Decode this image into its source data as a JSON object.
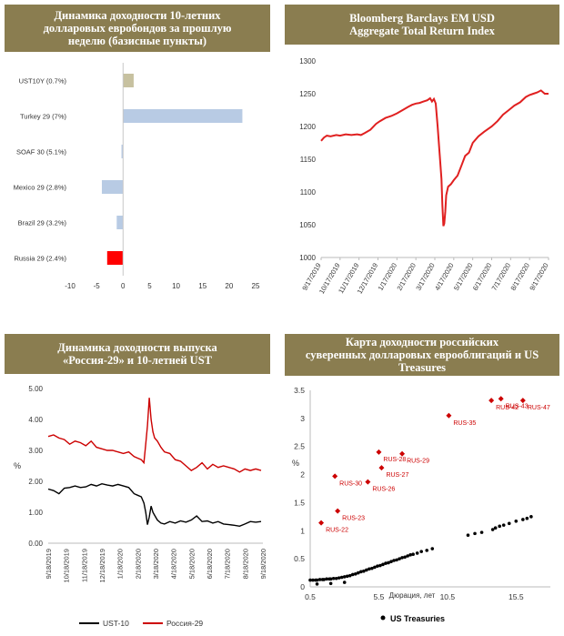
{
  "panels": {
    "p1": {
      "title_lines": [
        "Динамика доходности 10-летних",
        "долларовых евробондов за прошлую",
        "неделю (базисные пункты)"
      ]
    },
    "p2": {
      "title_lines": [
        "Bloomberg Barclays EM USD",
        "Aggregate Total Return Index"
      ]
    },
    "p3": {
      "title_lines": [
        "Динамика доходности выпуска",
        "«Россия-29» и 10-летней UST"
      ]
    },
    "p4": {
      "title_lines": [
        "Карта доходности российских",
        "суверенных долларовых еврооблигаций и US",
        "Treasures"
      ]
    }
  },
  "chart_data": [
    {
      "type": "bar",
      "orientation": "horizontal",
      "categories": [
        "UST10Y (0.7%)",
        "Turkey 29 (7%)",
        "SOAF 30 (5.1%)",
        "Mexico 29 (2.8%)",
        "Brazil 29 (3.2%)",
        "Russia 29 (2.4%)"
      ],
      "values": [
        2,
        22.5,
        -0.3,
        -4,
        -1.2,
        -3
      ],
      "colors": [
        "#c7c1a0",
        "#b8cbe4",
        "#b8cbe4",
        "#b8cbe4",
        "#b8cbe4",
        "#ff0000"
      ],
      "xlim": [
        -10,
        25
      ],
      "xticks": [
        -10,
        -5,
        0,
        5,
        10,
        15,
        20,
        25
      ]
    },
    {
      "type": "line",
      "color": "#e02020",
      "ylim": [
        1000,
        1300
      ],
      "yticks": [
        1000,
        1050,
        1100,
        1150,
        1200,
        1250,
        1300
      ],
      "xtick_labels": [
        "9/17/2019",
        "10/17/2019",
        "11/17/2019",
        "12/17/2019",
        "1/17/2020",
        "2/17/2020",
        "3/17/2020",
        "4/17/2020",
        "5/17/2020",
        "6/17/2020",
        "7/17/2020",
        "8/17/2020",
        "9/17/2020"
      ],
      "x_range": [
        0,
        12
      ],
      "series": [
        {
          "x": [
            0,
            0.15,
            0.3,
            0.5,
            0.8,
            1.0,
            1.3,
            1.6,
            1.9,
            2.1,
            2.3,
            2.6,
            2.9,
            3.1,
            3.4,
            3.7,
            4.0,
            4.3,
            4.6,
            4.8,
            5.0,
            5.2,
            5.4,
            5.6,
            5.75,
            5.85,
            5.95,
            6.05,
            6.15,
            6.25,
            6.35,
            6.4,
            6.45,
            6.5,
            6.55,
            6.6,
            6.7,
            6.85,
            7.0,
            7.2,
            7.4,
            7.6,
            7.8,
            8.0,
            8.3,
            8.6,
            9.0,
            9.3,
            9.6,
            9.9,
            10.2,
            10.5,
            10.8,
            11.0,
            11.2,
            11.4,
            11.6,
            11.8,
            12.0
          ],
          "y": [
            1178,
            1183,
            1186,
            1185,
            1187,
            1186,
            1188,
            1187,
            1188,
            1187,
            1190,
            1195,
            1204,
            1208,
            1213,
            1216,
            1220,
            1225,
            1230,
            1233,
            1235,
            1236,
            1238,
            1240,
            1243,
            1238,
            1242,
            1235,
            1200,
            1160,
            1120,
            1080,
            1048,
            1052,
            1070,
            1095,
            1108,
            1112,
            1118,
            1125,
            1140,
            1155,
            1160,
            1175,
            1185,
            1192,
            1200,
            1208,
            1218,
            1225,
            1232,
            1237,
            1245,
            1248,
            1250,
            1252,
            1255,
            1250,
            1250
          ]
        }
      ]
    },
    {
      "type": "line",
      "ylim": [
        0,
        5
      ],
      "yticks": [
        "0.00",
        "1.00",
        "2.00",
        "3.00",
        "4.00",
        "5.00"
      ],
      "ylabel": "%",
      "xtick_labels": [
        "9/18/2019",
        "10/18/2019",
        "11/18/2019",
        "12/18/2019",
        "1/18/2020",
        "2/18/2020",
        "3/18/2020",
        "4/18/2020",
        "5/18/2020",
        "6/18/2020",
        "7/18/2020",
        "8/18/2020",
        "9/18/2020"
      ],
      "x_range": [
        0,
        12
      ],
      "legend": "bottom",
      "series": [
        {
          "name": "UST-10",
          "color": "#000000",
          "x": [
            0,
            0.3,
            0.6,
            0.9,
            1.2,
            1.5,
            1.8,
            2.1,
            2.4,
            2.7,
            3.0,
            3.3,
            3.6,
            3.9,
            4.2,
            4.5,
            4.8,
            5.0,
            5.2,
            5.35,
            5.45,
            5.55,
            5.65,
            5.75,
            5.85,
            5.95,
            6.1,
            6.3,
            6.5,
            6.8,
            7.1,
            7.4,
            7.7,
            8.0,
            8.3,
            8.6,
            8.9,
            9.2,
            9.5,
            9.8,
            10.1,
            10.4,
            10.7,
            11.0,
            11.3,
            11.6,
            11.9
          ],
          "y": [
            1.75,
            1.7,
            1.6,
            1.78,
            1.8,
            1.85,
            1.8,
            1.82,
            1.9,
            1.85,
            1.92,
            1.88,
            1.85,
            1.9,
            1.85,
            1.8,
            1.6,
            1.55,
            1.5,
            1.3,
            1.0,
            0.6,
            0.85,
            1.2,
            1.0,
            0.9,
            0.75,
            0.65,
            0.62,
            0.7,
            0.65,
            0.72,
            0.68,
            0.75,
            0.88,
            0.7,
            0.72,
            0.65,
            0.7,
            0.62,
            0.6,
            0.58,
            0.55,
            0.62,
            0.7,
            0.68,
            0.7
          ]
        },
        {
          "name": "Россия-29",
          "color": "#cc0000",
          "x": [
            0,
            0.3,
            0.6,
            0.9,
            1.2,
            1.5,
            1.8,
            2.1,
            2.4,
            2.7,
            3.0,
            3.3,
            3.6,
            3.9,
            4.2,
            4.5,
            4.8,
            5.0,
            5.2,
            5.35,
            5.45,
            5.55,
            5.65,
            5.75,
            5.85,
            5.95,
            6.1,
            6.3,
            6.5,
            6.8,
            7.1,
            7.4,
            7.7,
            8.0,
            8.3,
            8.6,
            8.9,
            9.2,
            9.5,
            9.8,
            10.1,
            10.4,
            10.7,
            11.0,
            11.3,
            11.6,
            11.9
          ],
          "y": [
            3.45,
            3.5,
            3.4,
            3.35,
            3.2,
            3.3,
            3.25,
            3.15,
            3.3,
            3.1,
            3.05,
            3.0,
            3.0,
            2.95,
            2.9,
            2.95,
            2.8,
            2.75,
            2.7,
            2.6,
            3.2,
            3.8,
            4.7,
            4.0,
            3.6,
            3.4,
            3.3,
            3.1,
            2.95,
            2.9,
            2.7,
            2.65,
            2.5,
            2.35,
            2.45,
            2.6,
            2.4,
            2.55,
            2.45,
            2.5,
            2.45,
            2.4,
            2.3,
            2.4,
            2.35,
            2.4,
            2.35
          ]
        }
      ]
    },
    {
      "type": "scatter",
      "xlabel": "Дюрация, лет",
      "ylabel": "%",
      "xlim": [
        0.5,
        18
      ],
      "xticks": [
        "0.5",
        "5.5",
        "10.5",
        "15.5"
      ],
      "xtick_values": [
        0.5,
        5.5,
        10.5,
        15.5
      ],
      "ylim": [
        0,
        3.5
      ],
      "yticks": [
        "0",
        "0.5",
        "1",
        "1.5",
        "2",
        "2.5",
        "3",
        "3.5"
      ],
      "legend": "bottom",
      "series": [
        {
          "name": "",
          "color": "#cc0000",
          "marker": "diamond",
          "points": [
            {
              "label": "RUS-22",
              "x": 1.3,
              "y": 1.14
            },
            {
              "label": "RUS-23",
              "x": 2.5,
              "y": 1.35
            },
            {
              "label": "RUS-30",
              "x": 2.3,
              "y": 1.97
            },
            {
              "label": "RUS-26",
              "x": 4.7,
              "y": 1.87
            },
            {
              "label": "RUS-27",
              "x": 5.7,
              "y": 2.12
            },
            {
              "label": "RUS-28",
              "x": 5.5,
              "y": 2.4
            },
            {
              "label": "RUS-29",
              "x": 7.2,
              "y": 2.37
            },
            {
              "label": "RUS-35",
              "x": 10.6,
              "y": 3.05
            },
            {
              "label": "RUS-42",
              "x": 13.7,
              "y": 3.32
            },
            {
              "label": "RUS-43",
              "x": 14.4,
              "y": 3.35
            },
            {
              "label": "RUS-47",
              "x": 16.0,
              "y": 3.32
            }
          ]
        },
        {
          "name": "US Treasuries",
          "color": "#000000",
          "marker": "dot",
          "x": [
            0.5,
            0.7,
            0.9,
            1.0,
            1.2,
            1.4,
            1.5,
            1.7,
            1.9,
            2.0,
            2.2,
            2.4,
            2.6,
            2.8,
            3.0,
            3.2,
            3.4,
            3.6,
            3.8,
            4.0,
            4.2,
            4.4,
            4.6,
            4.8,
            5.0,
            5.2,
            5.4,
            5.6,
            5.8,
            6.0,
            6.2,
            6.4,
            6.6,
            6.8,
            7.0,
            7.2,
            7.4,
            7.6,
            7.8,
            8.0,
            8.3,
            8.6,
            9.0,
            9.4,
            12.0,
            12.5,
            13.0,
            13.8,
            14.0,
            14.3,
            14.6,
            15.0,
            15.5,
            16.0,
            16.3,
            16.6,
            1.0,
            2.0,
            3.0
          ],
          "y": [
            0.12,
            0.12,
            0.12,
            0.12,
            0.13,
            0.13,
            0.13,
            0.14,
            0.14,
            0.14,
            0.15,
            0.15,
            0.16,
            0.17,
            0.18,
            0.19,
            0.2,
            0.22,
            0.23,
            0.25,
            0.27,
            0.28,
            0.3,
            0.32,
            0.33,
            0.35,
            0.37,
            0.38,
            0.4,
            0.42,
            0.43,
            0.45,
            0.47,
            0.48,
            0.5,
            0.52,
            0.53,
            0.55,
            0.57,
            0.58,
            0.6,
            0.63,
            0.65,
            0.68,
            0.92,
            0.95,
            0.97,
            1.02,
            1.05,
            1.08,
            1.1,
            1.13,
            1.17,
            1.2,
            1.22,
            1.25,
            0.05,
            0.06,
            0.08
          ]
        }
      ]
    }
  ]
}
